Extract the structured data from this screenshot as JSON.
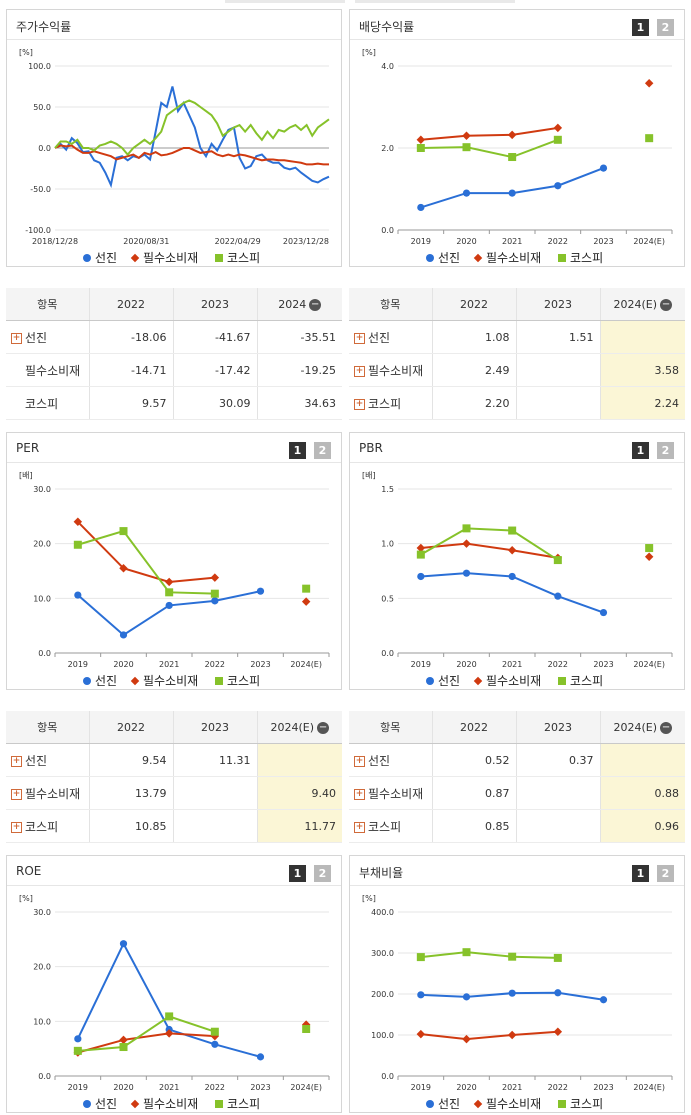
{
  "colors": {
    "seonjin": "#2a6fd6",
    "pilsu": "#d03a10",
    "kospi": "#86c22a"
  },
  "panels": {
    "return": {
      "title": "주가수익률"
    },
    "dividend": {
      "title": "배당수익률",
      "pages": [
        "1",
        "2"
      ]
    },
    "per": {
      "title": "PER",
      "pages": [
        "1",
        "2"
      ]
    },
    "pbr": {
      "title": "PBR",
      "pages": [
        "1",
        "2"
      ]
    },
    "roe": {
      "title": "ROE",
      "pages": [
        "1",
        "2"
      ]
    },
    "debt": {
      "title": "부채비율",
      "pages": [
        "1",
        "2"
      ]
    }
  },
  "legend": [
    "선진",
    "필수소비재",
    "코스피"
  ],
  "tables": {
    "return": {
      "headers": [
        "항목",
        "2022",
        "2023",
        "2024"
      ],
      "rows": [
        {
          "label": "선진",
          "plus": true,
          "values": [
            "-18.06",
            "-41.67",
            "-35.51"
          ]
        },
        {
          "label": "필수소비재",
          "plus": false,
          "values": [
            "-14.71",
            "-17.42",
            "-19.25"
          ]
        },
        {
          "label": "코스피",
          "plus": false,
          "values": [
            "9.57",
            "30.09",
            "34.63"
          ]
        }
      ]
    },
    "dividend": {
      "headers": [
        "항목",
        "2022",
        "2023",
        "2024(E)"
      ],
      "rows": [
        {
          "label": "선진",
          "plus": true,
          "values": [
            "1.08",
            "1.51",
            ""
          ]
        },
        {
          "label": "필수소비재",
          "plus": true,
          "values": [
            "2.49",
            "",
            "3.58"
          ]
        },
        {
          "label": "코스피",
          "plus": true,
          "values": [
            "2.20",
            "",
            "2.24"
          ]
        }
      ]
    },
    "per": {
      "headers": [
        "항목",
        "2022",
        "2023",
        "2024(E)"
      ],
      "rows": [
        {
          "label": "선진",
          "plus": true,
          "values": [
            "9.54",
            "11.31",
            ""
          ]
        },
        {
          "label": "필수소비재",
          "plus": true,
          "values": [
            "13.79",
            "",
            "9.40"
          ]
        },
        {
          "label": "코스피",
          "plus": true,
          "values": [
            "10.85",
            "",
            "11.77"
          ]
        }
      ]
    },
    "pbr": {
      "headers": [
        "항목",
        "2022",
        "2023",
        "2024(E)"
      ],
      "rows": [
        {
          "label": "선진",
          "plus": true,
          "values": [
            "0.52",
            "0.37",
            ""
          ]
        },
        {
          "label": "필수소비재",
          "plus": true,
          "values": [
            "0.87",
            "",
            "0.88"
          ]
        },
        {
          "label": "코스피",
          "plus": true,
          "values": [
            "0.85",
            "",
            "0.96"
          ]
        }
      ]
    }
  },
  "chart_data": [
    {
      "id": "return",
      "type": "line",
      "unit": "[%]",
      "ylim": [
        -100,
        100
      ],
      "yticks": [
        "100.0",
        "50.0",
        "0.0",
        "-50.0",
        "-100.0"
      ],
      "xticks": [
        "2018/12/28",
        "2020/08/31",
        "2022/04/29",
        "2023/12/28"
      ],
      "series": [
        {
          "name": "선진",
          "values": [
            0,
            5,
            -2,
            12,
            6,
            -5,
            -4,
            -15,
            -18,
            -30,
            -45,
            -12,
            -10,
            -15,
            -10,
            -12,
            -8,
            -14,
            20,
            55,
            50,
            75,
            45,
            55,
            40,
            25,
            0,
            -10,
            5,
            -3,
            10,
            22,
            25,
            -12,
            -25,
            -22,
            -10,
            -8,
            -15,
            -18,
            -18,
            -24,
            -26,
            -24,
            -30,
            -35,
            -40,
            -42,
            -38,
            -35
          ]
        },
        {
          "name": "필수소비재",
          "values": [
            0,
            3,
            2,
            3,
            -2,
            -6,
            -6,
            -4,
            -6,
            -8,
            -10,
            -14,
            -12,
            -10,
            -8,
            -12,
            -6,
            -8,
            -5,
            -9,
            -8,
            -6,
            -3,
            0,
            0,
            -3,
            -6,
            -5,
            -4,
            -8,
            -10,
            -8,
            -10,
            -8,
            -9,
            -11,
            -13,
            -15,
            -14,
            -14,
            -15,
            -15,
            -16,
            -17,
            -18,
            -20,
            -20,
            -19,
            -20,
            -20
          ]
        },
        {
          "name": "코스피",
          "values": [
            0,
            8,
            8,
            5,
            10,
            0,
            0,
            -3,
            3,
            5,
            8,
            5,
            0,
            -8,
            0,
            5,
            10,
            5,
            12,
            20,
            40,
            45,
            50,
            55,
            58,
            55,
            50,
            45,
            40,
            30,
            15,
            20,
            25,
            28,
            20,
            28,
            18,
            10,
            20,
            12,
            22,
            20,
            25,
            28,
            22,
            28,
            15,
            25,
            30,
            35
          ]
        }
      ]
    },
    {
      "id": "dividend",
      "type": "line",
      "unit": "[%]",
      "ylim": [
        0,
        4
      ],
      "yticks": [
        "4.0",
        "2.0",
        "0.0"
      ],
      "categories": [
        "2019",
        "2020",
        "2021",
        "2022",
        "2023",
        "2024(E)"
      ],
      "series": [
        {
          "name": "선진",
          "values": [
            0.55,
            0.9,
            0.9,
            1.08,
            1.51,
            null
          ]
        },
        {
          "name": "필수소비재",
          "values": [
            2.2,
            2.3,
            2.32,
            2.49,
            null,
            3.58
          ]
        },
        {
          "name": "코스피",
          "values": [
            2.0,
            2.02,
            1.78,
            2.2,
            null,
            2.24
          ]
        }
      ]
    },
    {
      "id": "per",
      "type": "line",
      "unit": "[배]",
      "ylim": [
        0,
        30
      ],
      "yticks": [
        "30.0",
        "20.0",
        "10.0",
        "0.0"
      ],
      "categories": [
        "2019",
        "2020",
        "2021",
        "2022",
        "2023",
        "2024(E)"
      ],
      "series": [
        {
          "name": "선진",
          "values": [
            10.6,
            3.3,
            8.7,
            9.54,
            11.31,
            null
          ]
        },
        {
          "name": "필수소비재",
          "values": [
            24.0,
            15.5,
            13.0,
            13.79,
            null,
            9.4
          ]
        },
        {
          "name": "코스피",
          "values": [
            19.8,
            22.3,
            11.1,
            10.85,
            null,
            11.77
          ]
        }
      ]
    },
    {
      "id": "pbr",
      "type": "line",
      "unit": "[배]",
      "ylim": [
        0,
        1.5
      ],
      "yticks": [
        "1.5",
        "1.0",
        "0.5",
        "0.0"
      ],
      "categories": [
        "2019",
        "2020",
        "2021",
        "2022",
        "2023",
        "2024(E)"
      ],
      "series": [
        {
          "name": "선진",
          "values": [
            0.7,
            0.73,
            0.7,
            0.52,
            0.37,
            null
          ]
        },
        {
          "name": "필수소비재",
          "values": [
            0.96,
            1.0,
            0.94,
            0.87,
            null,
            0.88
          ]
        },
        {
          "name": "코스피",
          "values": [
            0.9,
            1.14,
            1.12,
            0.85,
            null,
            0.96
          ]
        }
      ]
    },
    {
      "id": "roe",
      "type": "line",
      "unit": "[%]",
      "ylim": [
        0,
        30
      ],
      "yticks": [
        "30.0",
        "20.0",
        "10.0",
        "0.0"
      ],
      "categories": [
        "2019",
        "2020",
        "2021",
        "2022",
        "2023",
        "2024(E)"
      ],
      "series": [
        {
          "name": "선진",
          "values": [
            6.8,
            24.2,
            8.5,
            5.8,
            3.5,
            null
          ]
        },
        {
          "name": "필수소비재",
          "values": [
            4.3,
            6.6,
            7.8,
            7.3,
            null,
            9.4
          ]
        },
        {
          "name": "코스피",
          "values": [
            4.6,
            5.3,
            10.9,
            8.1,
            null,
            8.6
          ]
        }
      ]
    },
    {
      "id": "debt",
      "type": "line",
      "unit": "[%]",
      "ylim": [
        0,
        400
      ],
      "yticks": [
        "400.0",
        "300.0",
        "200.0",
        "100.0",
        "0.0"
      ],
      "categories": [
        "2019",
        "2020",
        "2021",
        "2022",
        "2023",
        "2024(E)"
      ],
      "series": [
        {
          "name": "선진",
          "values": [
            198,
            193,
            202,
            203,
            186,
            null
          ]
        },
        {
          "name": "필수소비재",
          "values": [
            102,
            90,
            100,
            108,
            null,
            null
          ]
        },
        {
          "name": "코스피",
          "values": [
            290,
            302,
            291,
            288,
            null,
            null
          ]
        }
      ]
    }
  ]
}
